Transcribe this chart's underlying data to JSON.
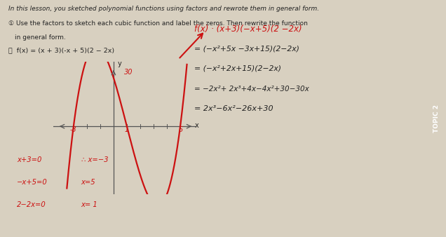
{
  "background_color": "#d8d0c0",
  "title_text": "In this lesson, you sketched polynomial functions using factors and rewrote them in general form.",
  "instruction_text": "Use the factors to sketch each cubic function and label the zeros. Then rewrite the function",
  "instruction_text2": "in general form.",
  "function_def": "f(x) = (x + 3)(-x + 5)(2 − 2x)",
  "rhs_line0": "f(x) · (x+3)(−x+5)(2 −2x)",
  "rhs_line1": "= (−x²+5x −3x+15)(2−2x)",
  "rhs_line2": "= (−x²+2x+15)(2−2x)",
  "rhs_line3": "= −2x²+ 2x³+4x−4x²+30−30x",
  "rhs_line4": "= 2x³−6x²−26x+30",
  "bottom_left": [
    "x+3=0",
    "−x+5=0",
    "2−2x=0"
  ],
  "bottom_right": [
    "∴ x=−3",
    "x=5",
    "x= 1"
  ],
  "topic_label": "TOPIC 2",
  "topic_bg": "#7b4f8a",
  "graph_color": "#cc1111",
  "arrow_color": "#cc1111",
  "text_dark": "#222222",
  "text_red": "#cc1111",
  "axis_color": "#555555"
}
